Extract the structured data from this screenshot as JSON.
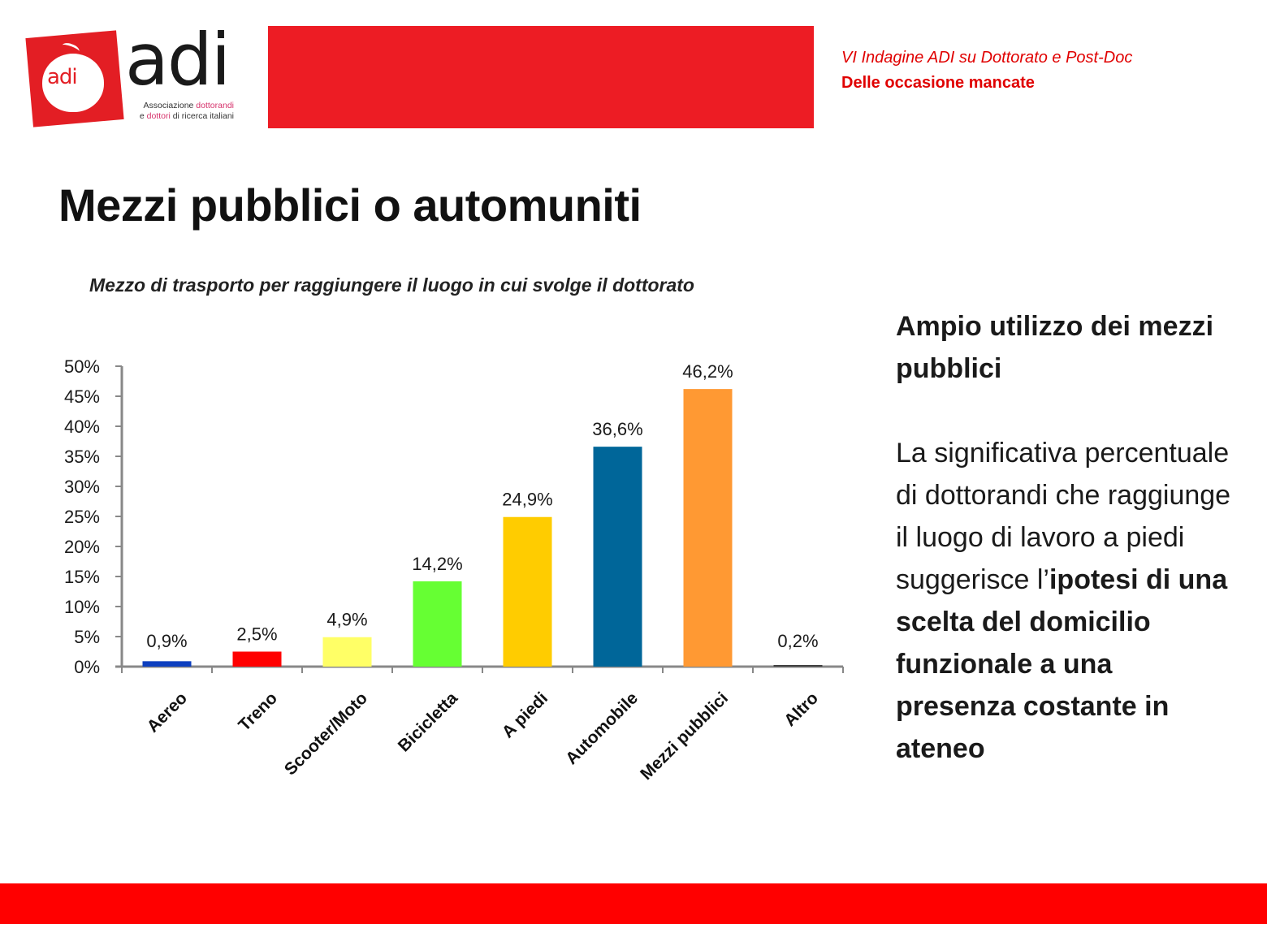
{
  "logo": {
    "apple_text": "adi",
    "wordmark": "adi",
    "subtitle_line1_a": "Associazione ",
    "subtitle_line1_b": "dottorandi",
    "subtitle_line2_a": "e ",
    "subtitle_line2_b": "dottori",
    "subtitle_line2_c": " di ricerca italiani"
  },
  "header": {
    "survey_title": "VI Indagine ADI su Dottorato e Post-Doc",
    "report_title": "Delle occasione mancate"
  },
  "page_title": "Mezzi pubblici o automuniti",
  "chart_data": {
    "type": "bar",
    "title": "Mezzo di trasporto per raggiungere  il luogo in cui svolge il dottorato",
    "xlabel": "",
    "ylabel": "",
    "ylim": [
      0,
      50
    ],
    "y_ticks": [
      "0%",
      "5%",
      "10%",
      "15%",
      "20%",
      "25%",
      "30%",
      "35%",
      "40%",
      "45%",
      "50%"
    ],
    "grid": false,
    "legend": "none",
    "categories": [
      "Aereo",
      "Treno",
      "Scooter/Moto",
      "Bicicletta",
      "A piedi",
      "Automobile",
      "Mezzi pubblici",
      "Altro"
    ],
    "values": [
      0.9,
      2.5,
      4.9,
      14.2,
      24.9,
      36.6,
      46.2,
      0.2
    ],
    "data_labels": [
      "0,9%",
      "2,5%",
      "4,9%",
      "14,2%",
      "24,9%",
      "36,6%",
      "46,2%",
      "0,2%"
    ],
    "colors": [
      "#0d3fbf",
      "#ff0000",
      "#ffff66",
      "#66ff33",
      "#ffcc00",
      "#006699",
      "#ff9933",
      "#404040"
    ]
  },
  "side_text": {
    "heading": "Ampio utilizzo dei mezzi pubblici",
    "body_plain": "La significativa percentuale di dottorandi che raggiunge il luogo di lavoro a piedi suggerisce l’",
    "body_bold": "ipotesi di una scelta del domicilio funzionale a una presenza costante in ateneo"
  },
  "colors": {
    "brand_red": "#ed1c24",
    "footer_red": "#ff0000",
    "header_text_red": "#e00000"
  }
}
